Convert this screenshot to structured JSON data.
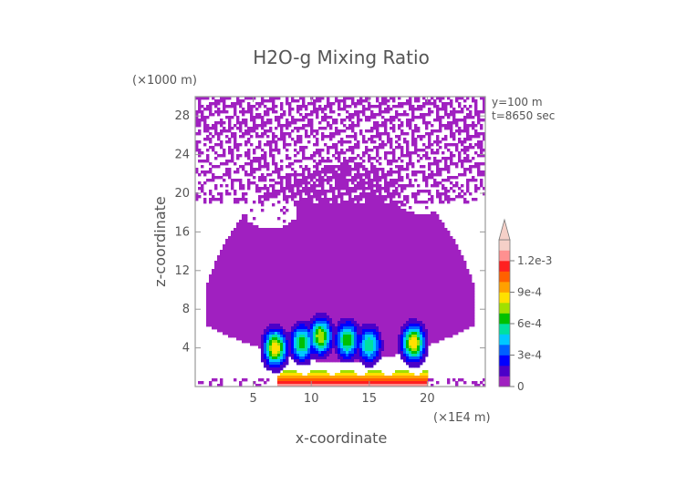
{
  "chart_data": {
    "type": "heatmap",
    "title": "H2O-g Mixing Ratio",
    "xlabel": "x-coordinate",
    "ylabel": "z-coordinate",
    "x_units": "(×1E4 m)",
    "y_units": "(×1000 m)",
    "xlim": [
      0,
      25
    ],
    "ylim": [
      0,
      30
    ],
    "x_ticks": [
      "5",
      "10",
      "15",
      "20"
    ],
    "y_ticks": [
      "4",
      "8",
      "12",
      "16",
      "20",
      "24",
      "28"
    ],
    "annotations": [
      "y=100 m",
      "t=8650 sec"
    ],
    "colorbar": {
      "levels": [
        0,
        0.0001,
        0.0002,
        0.0003,
        0.0004,
        0.0005,
        0.0006,
        0.0007,
        0.0008,
        0.0009,
        0.001,
        0.0011,
        0.0012,
        0.0013
      ],
      "colors": [
        "#a020c0",
        "#4b00c8",
        "#0000ff",
        "#0060ff",
        "#00c8ff",
        "#00e0a0",
        "#00c000",
        "#a0e000",
        "#ffe000",
        "#ffa000",
        "#ff6000",
        "#ff2020",
        "#ff9090",
        "#f5d0c8"
      ],
      "tick_labels": [
        "0",
        "3e-4",
        "6e-4",
        "9e-4",
        "1.2e-3"
      ],
      "tick_values": [
        0,
        0.0003,
        0.0006,
        0.0009,
        0.0012
      ],
      "extend": "max"
    },
    "fields": {
      "background_level": 5e-05,
      "main_cloud": {
        "x_range": [
          1.0,
          24.0
        ],
        "z_range": [
          2.5,
          23.0
        ]
      },
      "upper_streaks": {
        "x_range": [
          0,
          25
        ],
        "z_range": [
          19.0,
          30.0
        ]
      },
      "clear_gaps": [
        {
          "x_center": 6.5,
          "z_center": 18.0
        },
        {
          "x_center": 19.5,
          "z_center": 19.5
        }
      ],
      "moist_cells": [
        {
          "x": 6.9,
          "z": 4.0,
          "peak": 0.0009
        },
        {
          "x": 9.2,
          "z": 4.5,
          "peak": 0.0007
        },
        {
          "x": 10.8,
          "z": 5.2,
          "peak": 0.0008
        },
        {
          "x": 13.1,
          "z": 4.8,
          "peak": 0.0007
        },
        {
          "x": 15.0,
          "z": 4.3,
          "peak": 0.0006
        },
        {
          "x": 18.8,
          "z": 4.5,
          "peak": 0.0009
        }
      ],
      "surface_layer": {
        "x_range": [
          7.0,
          20.0
        ],
        "z_top": 1.8,
        "peak": 0.0013
      }
    }
  }
}
